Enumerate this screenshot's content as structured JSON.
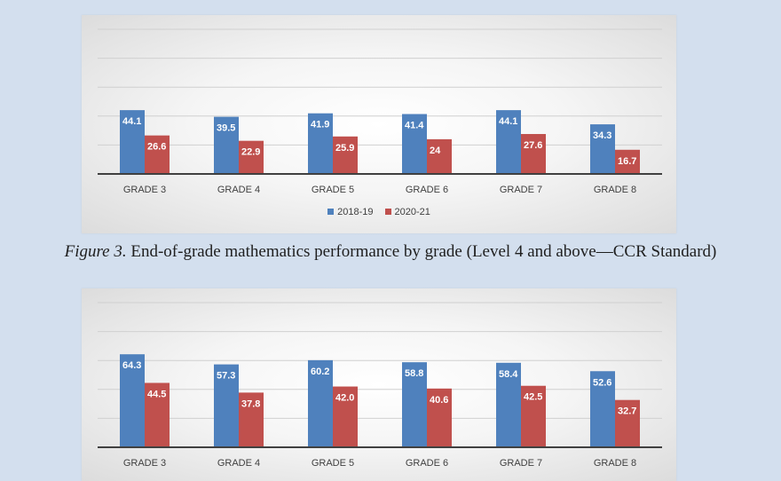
{
  "colors": {
    "series_2018": "#4f81bd",
    "series_2021": "#c0504d",
    "axis": "#404040",
    "grid": "#d0d0d0"
  },
  "caption": {
    "lead": "Figure 3.",
    "text": " End-of-grade mathematics performance by grade (Level 4 and above—CCR Standard)"
  },
  "chart_data": [
    {
      "type": "bar",
      "categories": [
        "GRADE 3",
        "GRADE 4",
        "GRADE 5",
        "GRADE 6",
        "GRADE 7",
        "GRADE 8"
      ],
      "series": [
        {
          "name": "2018-19",
          "values": [
            44.1,
            39.5,
            41.9,
            41.4,
            44.1,
            34.3
          ],
          "labels": [
            "44.1",
            "39.5",
            "41.9",
            "41.4",
            "44.1",
            "34.3"
          ]
        },
        {
          "name": "2020-21",
          "values": [
            26.6,
            22.9,
            25.9,
            24,
            27.6,
            16.7
          ],
          "labels": [
            "26.6",
            "22.9",
            "25.9",
            "24",
            "27.6",
            "16.7"
          ]
        }
      ],
      "ylim": [
        0,
        100
      ],
      "grid": true,
      "legend": "bottom"
    },
    {
      "type": "bar",
      "categories": [
        "GRADE 3",
        "GRADE 4",
        "GRADE 5",
        "GRADE 6",
        "GRADE 7",
        "GRADE 8"
      ],
      "series": [
        {
          "name": "2018-19",
          "values": [
            64.3,
            57.3,
            60.2,
            58.8,
            58.4,
            52.6
          ],
          "labels": [
            "64.3",
            "57.3",
            "60.2",
            "58.8",
            "58.4",
            "52.6"
          ]
        },
        {
          "name": "2020-21",
          "values": [
            44.5,
            37.8,
            42.0,
            40.6,
            42.5,
            32.7
          ],
          "labels": [
            "44.5",
            "37.8",
            "42.0",
            "40.6",
            "42.5",
            "32.7"
          ]
        }
      ],
      "ylim": [
        0,
        100
      ],
      "grid": true,
      "legend": "bottom"
    }
  ]
}
